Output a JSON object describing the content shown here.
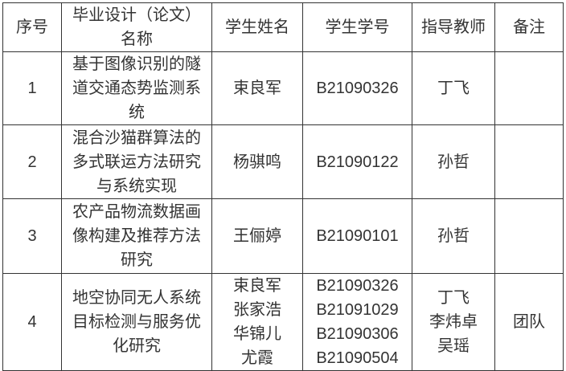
{
  "table": {
    "headers": [
      "序号",
      "毕业设计（论文）\n名称",
      "学生姓名",
      "学生学号",
      "指导教师",
      "备注"
    ],
    "rows": [
      {
        "no": "1",
        "title": "基于图像识别的隧\n道交通态势监测系\n统",
        "students": "束良军",
        "student_ids": "B21090326",
        "teachers": "丁飞",
        "remark": ""
      },
      {
        "no": "2",
        "title": "混合沙猫群算法的\n多式联运方法研究\n与系统实现",
        "students": "杨骐鸣",
        "student_ids": "B21090122",
        "teachers": "孙哲",
        "remark": ""
      },
      {
        "no": "3",
        "title": "农产品物流数据画\n像构建及推荐方法\n研究",
        "students": "王俪婷",
        "student_ids": "B21090101",
        "teachers": "孙哲",
        "remark": ""
      },
      {
        "no": "4",
        "title": "地空协同无人系统\n目标检测与服务优\n化研究",
        "students": "束良军\n张家浩\n华锦儿\n尤霞",
        "student_ids": "B21090326\nB21091029\nB21090306\nB21090504",
        "teachers": "丁飞\n李炜卓\n吴瑶",
        "remark": "团队"
      }
    ],
    "colors": {
      "text": "#333333",
      "border": "#333333",
      "background": "#ffffff"
    }
  }
}
